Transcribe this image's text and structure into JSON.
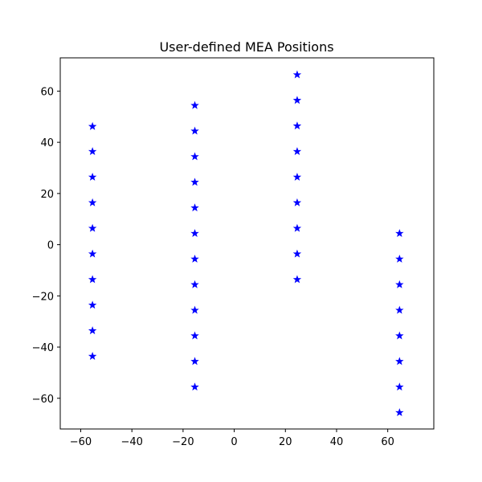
{
  "chart_data": {
    "type": "scatter",
    "title": "User-defined MEA Positions",
    "xlabel": "",
    "ylabel": "",
    "xlim": [
      -68,
      78
    ],
    "ylim": [
      -72,
      73
    ],
    "grid": false,
    "marker": "star",
    "color": "#0000ff",
    "xticks": [
      -60,
      -40,
      -20,
      0,
      20,
      40,
      60
    ],
    "yticks": [
      -60,
      -40,
      -20,
      0,
      20,
      40,
      60
    ],
    "xtick_labels": [
      "−60",
      "−40",
      "−20",
      "0",
      "20",
      "40",
      "60"
    ],
    "ytick_labels": [
      "−60",
      "−40",
      "−20",
      "0",
      "20",
      "40",
      "60"
    ],
    "series": [
      {
        "points": [
          {
            "x": -55.4,
            "y": 46.2
          },
          {
            "x": -55.4,
            "y": 36.4
          },
          {
            "x": -55.4,
            "y": 26.4
          },
          {
            "x": -55.4,
            "y": 16.4
          },
          {
            "x": -55.4,
            "y": 6.4
          },
          {
            "x": -55.4,
            "y": -3.6
          },
          {
            "x": -55.4,
            "y": -13.6
          },
          {
            "x": -55.4,
            "y": -23.6
          },
          {
            "x": -55.4,
            "y": -33.6
          },
          {
            "x": -55.4,
            "y": -43.6
          },
          {
            "x": -15.4,
            "y": 54.4
          },
          {
            "x": -15.4,
            "y": 44.4
          },
          {
            "x": -15.4,
            "y": 34.4
          },
          {
            "x": -15.4,
            "y": 24.4
          },
          {
            "x": -15.4,
            "y": 14.4
          },
          {
            "x": -15.4,
            "y": 4.4
          },
          {
            "x": -15.4,
            "y": -5.6
          },
          {
            "x": -15.4,
            "y": -15.6
          },
          {
            "x": -15.4,
            "y": -25.6
          },
          {
            "x": -15.4,
            "y": -35.6
          },
          {
            "x": -15.4,
            "y": -45.6
          },
          {
            "x": -15.4,
            "y": -55.6
          },
          {
            "x": 24.6,
            "y": 66.4
          },
          {
            "x": 24.6,
            "y": 56.4
          },
          {
            "x": 24.6,
            "y": 46.4
          },
          {
            "x": 24.6,
            "y": 36.4
          },
          {
            "x": 24.6,
            "y": 26.4
          },
          {
            "x": 24.6,
            "y": 16.4
          },
          {
            "x": 24.6,
            "y": 6.4
          },
          {
            "x": 24.6,
            "y": -3.6
          },
          {
            "x": 24.6,
            "y": -13.6
          },
          {
            "x": 64.6,
            "y": 4.4
          },
          {
            "x": 64.6,
            "y": -5.6
          },
          {
            "x": 64.6,
            "y": -15.6
          },
          {
            "x": 64.6,
            "y": -25.6
          },
          {
            "x": 64.6,
            "y": -35.6
          },
          {
            "x": 64.6,
            "y": -45.6
          },
          {
            "x": 64.6,
            "y": -55.6
          },
          {
            "x": 64.6,
            "y": -65.6
          }
        ]
      }
    ]
  }
}
